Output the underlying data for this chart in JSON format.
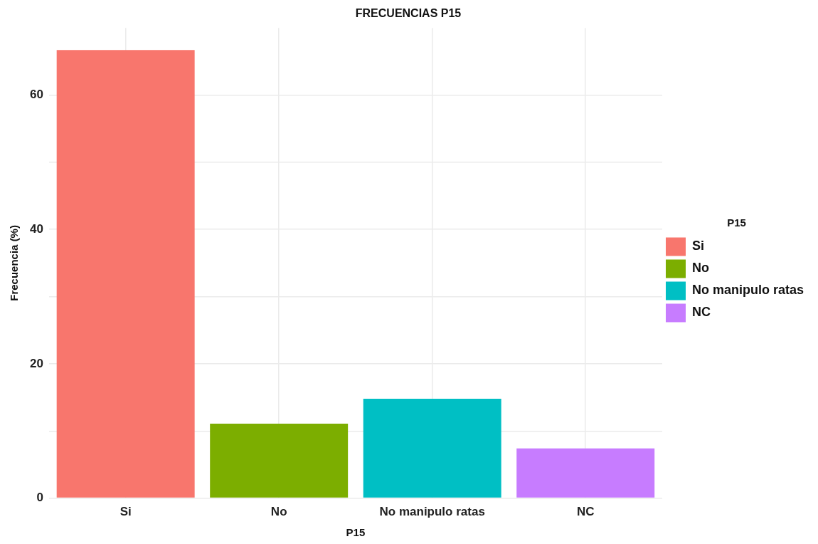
{
  "chart_data": {
    "type": "bar",
    "title": "FRECUENCIAS P15",
    "xlabel": "P15",
    "ylabel": "Frecuencia (%)",
    "legend_title": "P15",
    "categories": [
      "Si",
      "No",
      "No manipulo ratas",
      "NC"
    ],
    "series": [
      {
        "name": "Si",
        "color": "#f8766d",
        "values": [
          66.7,
          null,
          null,
          null
        ]
      },
      {
        "name": "No",
        "color": "#7cae00",
        "values": [
          null,
          11.1,
          null,
          null
        ]
      },
      {
        "name": "No manipulo ratas",
        "color": "#00bfc4",
        "values": [
          null,
          null,
          14.8,
          null
        ]
      },
      {
        "name": "NC",
        "color": "#c77cff",
        "values": [
          null,
          null,
          null,
          7.4
        ]
      }
    ],
    "stacked": true,
    "ylim": [
      0,
      70
    ],
    "yticks": [
      0,
      {
        "value": 10,
        "label": null
      },
      20,
      {
        "value": 30,
        "label": null
      },
      40,
      {
        "value": 50,
        "label": null
      },
      60
    ],
    "grid": true,
    "legend": "right"
  }
}
